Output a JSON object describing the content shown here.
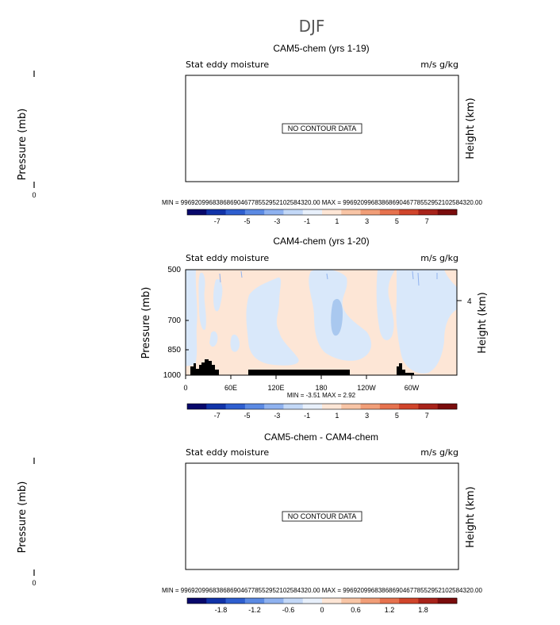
{
  "page_title": "DJF",
  "chart_data": [
    {
      "type": "contour",
      "title": "CAM5-chem (yrs 1-19)",
      "subtitle_left": "Stat eddy moisture",
      "subtitle_right": "m/s g/kg",
      "ylabel": "Pressure (mb)",
      "ylabel_right": "Height (km)",
      "yticks_left": [
        "0"
      ],
      "message": "NO CONTOUR DATA",
      "stats": "MIN = 9969209968386869046778552952102584320.00   MAX = 9969209968386869046778552952102584320.00",
      "colorbar": {
        "labels": [
          "-7",
          "-5",
          "-3",
          "-1",
          "1",
          "3",
          "5",
          "7"
        ],
        "colors": [
          "#08086b",
          "#1133a8",
          "#2e5ecf",
          "#5b8ae3",
          "#8fb2ef",
          "#c3d8f7",
          "#e8f0fb",
          "#fde6d6",
          "#f8c5a6",
          "#f19e78",
          "#e6724e",
          "#d0452b",
          "#a8231a",
          "#7a0c0c"
        ]
      }
    },
    {
      "type": "contour",
      "title": "CAM4-chem (yrs 1-20)",
      "subtitle_left": "Stat eddy moisture",
      "subtitle_right": "m/s g/kg",
      "ylabel": "Pressure (mb)",
      "ylabel_right": "Height (km)",
      "yticks_left": [
        "500",
        "700",
        "850",
        "1000"
      ],
      "yticks_right": [
        "4"
      ],
      "xticks": [
        "0",
        "60E",
        "120E",
        "180",
        "120W",
        "60W"
      ],
      "stats": "MIN = -3.51   MAX = 2.92",
      "min": -3.51,
      "max": 2.92,
      "fill_colors": {
        "positive": "#fde6d6",
        "negative": "#d9e8fa"
      },
      "colorbar": {
        "labels": [
          "-7",
          "-5",
          "-3",
          "-1",
          "1",
          "3",
          "5",
          "7"
        ],
        "colors": [
          "#08086b",
          "#1133a8",
          "#2e5ecf",
          "#5b8ae3",
          "#8fb2ef",
          "#c3d8f7",
          "#e8f0fb",
          "#fde6d6",
          "#f8c5a6",
          "#f19e78",
          "#e6724e",
          "#d0452b",
          "#a8231a",
          "#7a0c0c"
        ]
      }
    },
    {
      "type": "contour",
      "title": "CAM5-chem - CAM4-chem",
      "subtitle_left": "Stat eddy moisture",
      "subtitle_right": "m/s g/kg",
      "ylabel": "Pressure (mb)",
      "ylabel_right": "Height (km)",
      "yticks_left": [
        "0"
      ],
      "message": "NO CONTOUR DATA",
      "stats": "MIN = 9969209968386869046778552952102584320.00   MAX = 9969209968386869046778552952102584320.00",
      "colorbar": {
        "labels": [
          "-1.8",
          "-1.2",
          "-0.6",
          "0",
          "0.6",
          "1.2",
          "1.8"
        ],
        "colors": [
          "#08086b",
          "#1133a8",
          "#2e5ecf",
          "#5b8ae3",
          "#8fb2ef",
          "#c3d8f7",
          "#e8f0fb",
          "#fde6d6",
          "#f8c5a6",
          "#f19e78",
          "#e6724e",
          "#d0452b",
          "#a8231a",
          "#7a0c0c"
        ]
      }
    }
  ]
}
